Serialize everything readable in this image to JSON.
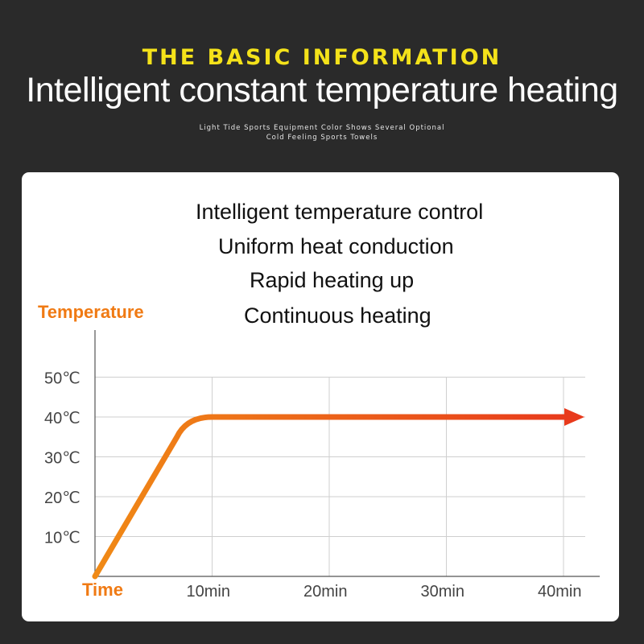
{
  "header": {
    "eyebrow": "THE BASIC INFORMATION",
    "headline": "Intelligent constant temperature heating",
    "subline_1": "Light Tide Sports Equipment Color Shows Several Optional",
    "subline_2": "Cold Feeling Sports Towels"
  },
  "features": [
    "Intelligent temperature control",
    "Uniform heat conduction",
    "Rapid heating up",
    "Continuous heating"
  ],
  "colors": {
    "background": "#2a2a2a",
    "eyebrow": "#f4e21a",
    "axis_label": "#f07a13",
    "curve_start": "#f08a16",
    "curve_end": "#e83a1c"
  },
  "chart_data": {
    "type": "line",
    "ylabel": "Temperature",
    "xlabel": "Time",
    "y_ticks": [
      "10℃",
      "20℃",
      "30℃",
      "40℃",
      "50℃"
    ],
    "y_tick_values": [
      10,
      20,
      30,
      40,
      50
    ],
    "x_ticks": [
      "10min",
      "20min",
      "30min",
      "40min"
    ],
    "x_tick_values": [
      10,
      20,
      30,
      40
    ],
    "xlim": [
      0,
      40
    ],
    "ylim": [
      0,
      50
    ],
    "grid": true,
    "series": [
      {
        "x": [
          0,
          7,
          10,
          40
        ],
        "y": [
          0,
          35,
          40,
          40
        ]
      }
    ],
    "arrow_end": true
  }
}
